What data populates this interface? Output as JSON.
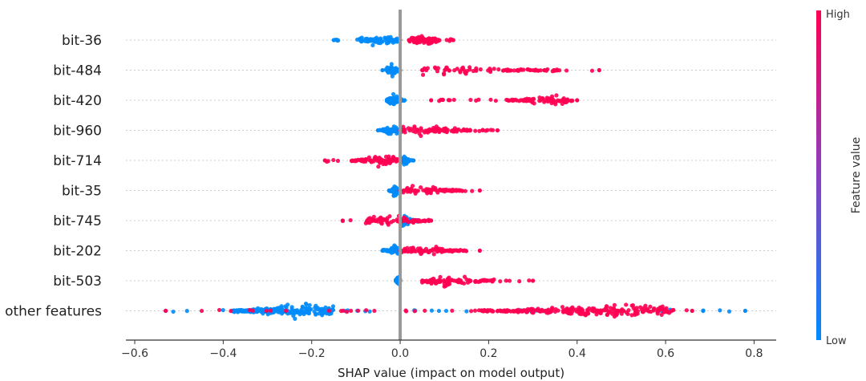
{
  "chart_data": {
    "type": "scatter",
    "title": "",
    "xlabel": "SHAP value (impact on model output)",
    "xlim": [
      -0.62,
      0.85
    ],
    "xticks": [
      -0.6,
      -0.4,
      -0.2,
      0.0,
      0.2,
      0.4,
      0.6,
      0.8
    ],
    "xtick_labels": [
      "−0.6",
      "−0.4",
      "−0.2",
      "0.0",
      "0.2",
      "0.4",
      "0.6",
      "0.8"
    ],
    "zero_line": 0.0,
    "grid": "dotted horizontal per feature row",
    "colorbar": {
      "title": "Feature value",
      "high_label": "High",
      "low_label": "Low",
      "high_color": "#ff0052",
      "low_color": "#008bfb",
      "position": "right"
    },
    "features": [
      {
        "name": "bit-36",
        "low": {
          "min": -0.15,
          "max": 0.0,
          "dense": [
            -0.09,
            0.0
          ],
          "peak": -0.05
        },
        "high": {
          "min": 0.02,
          "max": 0.12,
          "dense": [
            0.02,
            0.09
          ],
          "peak": 0.05
        }
      },
      {
        "name": "bit-484",
        "low": {
          "min": -0.04,
          "max": 0.0,
          "dense": [
            -0.03,
            0.0
          ],
          "peak": -0.02
        },
        "high": {
          "min": 0.05,
          "max": 0.45,
          "dense": [
            0.05,
            0.36
          ],
          "peak": 0.1
        }
      },
      {
        "name": "bit-420",
        "low": {
          "min": -0.03,
          "max": 0.01,
          "dense": [
            -0.03,
            0.0
          ],
          "peak": -0.015
        },
        "high": {
          "min": 0.07,
          "max": 0.4,
          "dense": [
            0.24,
            0.39
          ],
          "peak": 0.33
        }
      },
      {
        "name": "bit-960",
        "low": {
          "min": -0.05,
          "max": 0.0,
          "dense": [
            -0.04,
            0.0
          ],
          "peak": -0.02
        },
        "high": {
          "min": 0.0,
          "max": 0.22,
          "dense": [
            0.0,
            0.17
          ],
          "peak": 0.05
        }
      },
      {
        "name": "bit-714",
        "low": {
          "min": 0.0,
          "max": 0.03,
          "dense": [
            0.0,
            0.02
          ],
          "peak": 0.01
        },
        "high": {
          "min": -0.17,
          "max": 0.0,
          "dense": [
            -0.11,
            0.0
          ],
          "peak": -0.04
        }
      },
      {
        "name": "bit-35",
        "low": {
          "min": -0.025,
          "max": 0.0,
          "dense": [
            -0.02,
            0.0
          ],
          "peak": -0.01
        },
        "high": {
          "min": 0.0,
          "max": 0.18,
          "dense": [
            0.0,
            0.15
          ],
          "peak": 0.03
        }
      },
      {
        "name": "bit-745",
        "low": {
          "min": 0.0,
          "max": 0.04,
          "dense": [
            0.0,
            0.03
          ],
          "peak": 0.01
        },
        "high": {
          "min": -0.13,
          "max": 0.07,
          "dense": [
            -0.08,
            0.07
          ],
          "peak": -0.03
        }
      },
      {
        "name": "bit-202",
        "low": {
          "min": -0.04,
          "max": 0.0,
          "dense": [
            -0.03,
            0.0
          ],
          "peak": -0.01
        },
        "high": {
          "min": 0.0,
          "max": 0.18,
          "dense": [
            0.0,
            0.15
          ],
          "peak": 0.04
        }
      },
      {
        "name": "bit-503",
        "low": {
          "min": -0.01,
          "max": 0.0,
          "dense": [
            -0.01,
            0.0
          ],
          "peak": -0.005
        },
        "high": {
          "min": 0.05,
          "max": 0.3,
          "dense": [
            0.05,
            0.21
          ],
          "peak": 0.1
        }
      },
      {
        "name": "other features",
        "low": {
          "min": -0.53,
          "max": 0.78,
          "dense": [
            -0.38,
            -0.15
          ],
          "peak": -0.22
        },
        "high": {
          "min": -0.53,
          "max": 0.66,
          "dense": [
            0.18,
            0.62
          ],
          "peak": 0.5
        }
      }
    ]
  }
}
